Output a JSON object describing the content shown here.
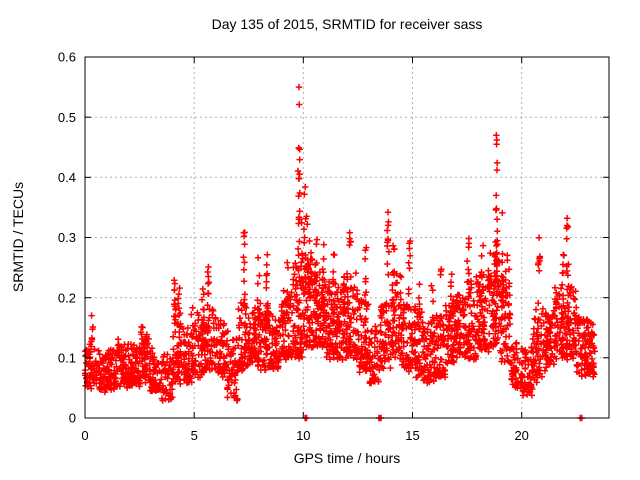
{
  "chart_data": {
    "type": "scatter",
    "title": "Day 135 of 2015, SRMTID for receiver sass",
    "xlabel": "GPS time / hours",
    "ylabel": "SRMTID / TECUs",
    "xlim": [
      0,
      24
    ],
    "ylim": [
      0,
      0.6
    ],
    "xticks": [
      {
        "v": 0,
        "l": "0"
      },
      {
        "v": 5,
        "l": "5"
      },
      {
        "v": 10,
        "l": "10"
      },
      {
        "v": 15,
        "l": "15"
      },
      {
        "v": 20,
        "l": "20"
      }
    ],
    "yticks": [
      {
        "v": 0,
        "l": "0"
      },
      {
        "v": 0.1,
        "l": "0.1"
      },
      {
        "v": 0.2,
        "l": "0.2"
      },
      {
        "v": 0.3,
        "l": "0.3"
      },
      {
        "v": 0.4,
        "l": "0.4"
      },
      {
        "v": 0.5,
        "l": "0.5"
      },
      {
        "v": 0.6,
        "l": "0.6"
      }
    ],
    "grid": true,
    "marker": "plus",
    "marker_color": "#ff0000",
    "grid_color": "#b0b0b0",
    "border_color": "#000000",
    "background_color": "#ffffff",
    "seed": 1337,
    "bands": [
      [
        0.0,
        0.5,
        55,
        0.05,
        0.125
      ],
      [
        0.5,
        1.0,
        55,
        0.045,
        0.11
      ],
      [
        1.0,
        1.5,
        55,
        0.05,
        0.115
      ],
      [
        1.5,
        2.0,
        55,
        0.05,
        0.12
      ],
      [
        2.0,
        2.5,
        55,
        0.055,
        0.12
      ],
      [
        2.5,
        3.0,
        55,
        0.06,
        0.14
      ],
      [
        3.0,
        3.5,
        50,
        0.045,
        0.115
      ],
      [
        3.5,
        4.0,
        50,
        0.03,
        0.11
      ],
      [
        4.0,
        4.5,
        55,
        0.06,
        0.18
      ],
      [
        4.5,
        5.0,
        55,
        0.06,
        0.15
      ],
      [
        5.0,
        5.5,
        55,
        0.07,
        0.18
      ],
      [
        5.5,
        6.0,
        55,
        0.08,
        0.19
      ],
      [
        6.0,
        6.5,
        55,
        0.07,
        0.16
      ],
      [
        6.5,
        7.0,
        50,
        0.03,
        0.14
      ],
      [
        7.0,
        7.5,
        60,
        0.08,
        0.19
      ],
      [
        7.5,
        8.0,
        60,
        0.09,
        0.18
      ],
      [
        8.0,
        8.5,
        60,
        0.08,
        0.19
      ],
      [
        8.5,
        9.0,
        55,
        0.08,
        0.17
      ],
      [
        9.0,
        9.5,
        60,
        0.1,
        0.21
      ],
      [
        9.5,
        10.0,
        65,
        0.1,
        0.26
      ],
      [
        10.0,
        10.5,
        70,
        0.12,
        0.28
      ],
      [
        10.5,
        11.0,
        70,
        0.12,
        0.26
      ],
      [
        11.0,
        11.5,
        65,
        0.1,
        0.23
      ],
      [
        11.5,
        12.0,
        65,
        0.1,
        0.22
      ],
      [
        12.0,
        12.5,
        60,
        0.1,
        0.24
      ],
      [
        12.5,
        13.0,
        60,
        0.08,
        0.2
      ],
      [
        13.0,
        13.5,
        50,
        0.06,
        0.16
      ],
      [
        13.5,
        14.0,
        55,
        0.08,
        0.21
      ],
      [
        14.0,
        14.5,
        60,
        0.1,
        0.24
      ],
      [
        14.5,
        15.0,
        55,
        0.08,
        0.19
      ],
      [
        15.0,
        15.5,
        55,
        0.07,
        0.19
      ],
      [
        15.5,
        16.0,
        55,
        0.06,
        0.16
      ],
      [
        16.0,
        16.5,
        55,
        0.07,
        0.17
      ],
      [
        16.5,
        17.0,
        60,
        0.09,
        0.2
      ],
      [
        17.0,
        17.5,
        60,
        0.1,
        0.21
      ],
      [
        17.5,
        18.0,
        60,
        0.1,
        0.23
      ],
      [
        18.0,
        18.5,
        65,
        0.11,
        0.25
      ],
      [
        18.5,
        19.0,
        70,
        0.12,
        0.29
      ],
      [
        19.0,
        19.5,
        60,
        0.09,
        0.26
      ],
      [
        19.5,
        20.0,
        50,
        0.05,
        0.13
      ],
      [
        20.0,
        20.5,
        55,
        0.04,
        0.12
      ],
      [
        20.5,
        21.0,
        55,
        0.06,
        0.18
      ],
      [
        21.0,
        21.5,
        55,
        0.08,
        0.18
      ],
      [
        21.5,
        22.0,
        60,
        0.1,
        0.22
      ],
      [
        22.0,
        22.5,
        60,
        0.1,
        0.22
      ],
      [
        22.5,
        23.0,
        55,
        0.07,
        0.17
      ],
      [
        23.0,
        23.35,
        50,
        0.07,
        0.16
      ]
    ],
    "spikes": [
      [
        0.32,
        0.12,
        0.175,
        6
      ],
      [
        1.55,
        0.1,
        0.14,
        5
      ],
      [
        2.6,
        0.11,
        0.155,
        5
      ],
      [
        4.12,
        0.14,
        0.27,
        11
      ],
      [
        4.3,
        0.12,
        0.22,
        7
      ],
      [
        4.9,
        0.12,
        0.19,
        6
      ],
      [
        5.4,
        0.13,
        0.22,
        7
      ],
      [
        5.65,
        0.14,
        0.28,
        10
      ],
      [
        7.3,
        0.15,
        0.31,
        11
      ],
      [
        7.95,
        0.14,
        0.27,
        9
      ],
      [
        8.35,
        0.15,
        0.29,
        11
      ],
      [
        9.3,
        0.15,
        0.26,
        9
      ],
      [
        9.8,
        0.2,
        0.45,
        15
      ],
      [
        9.95,
        0.17,
        0.34,
        9
      ],
      [
        10.07,
        0.2,
        0.4,
        11
      ],
      [
        10.3,
        0.17,
        0.3,
        7
      ],
      [
        10.6,
        0.16,
        0.31,
        11
      ],
      [
        10.9,
        0.16,
        0.3,
        9
      ],
      [
        11.4,
        0.15,
        0.28,
        9
      ],
      [
        11.85,
        0.14,
        0.26,
        8
      ],
      [
        12.15,
        0.14,
        0.31,
        11
      ],
      [
        12.85,
        0.13,
        0.29,
        9
      ],
      [
        13.88,
        0.14,
        0.34,
        11
      ],
      [
        14.15,
        0.15,
        0.3,
        9
      ],
      [
        14.85,
        0.13,
        0.3,
        9
      ],
      [
        15.3,
        0.12,
        0.25,
        7
      ],
      [
        15.9,
        0.11,
        0.27,
        7
      ],
      [
        16.3,
        0.12,
        0.28,
        7
      ],
      [
        16.8,
        0.12,
        0.25,
        7
      ],
      [
        17.55,
        0.14,
        0.3,
        9
      ],
      [
        18.2,
        0.14,
        0.3,
        9
      ],
      [
        18.85,
        0.2,
        0.37,
        15
      ],
      [
        19.1,
        0.14,
        0.35,
        11
      ],
      [
        20.8,
        0.11,
        0.3,
        9
      ],
      [
        21.9,
        0.13,
        0.28,
        9
      ],
      [
        22.1,
        0.14,
        0.33,
        11
      ]
    ],
    "outliers": [
      [
        9.8,
        0.55
      ],
      [
        9.81,
        0.521
      ],
      [
        9.79,
        0.449
      ],
      [
        9.83,
        0.405
      ],
      [
        9.84,
        0.374
      ],
      [
        10.15,
        0.335
      ],
      [
        10.18,
        0.322
      ],
      [
        13.88,
        0.342
      ],
      [
        13.9,
        0.326
      ],
      [
        18.84,
        0.47
      ],
      [
        18.86,
        0.462
      ],
      [
        18.85,
        0.455
      ],
      [
        18.88,
        0.424
      ],
      [
        18.87,
        0.412
      ],
      [
        22.08,
        0.332
      ],
      [
        22.12,
        0.318
      ]
    ],
    "zero_points": [
      [
        10.08,
        3
      ],
      [
        10.13,
        2
      ],
      [
        13.46,
        2
      ],
      [
        13.54,
        2
      ],
      [
        22.68,
        1
      ],
      [
        22.76,
        1
      ]
    ]
  }
}
